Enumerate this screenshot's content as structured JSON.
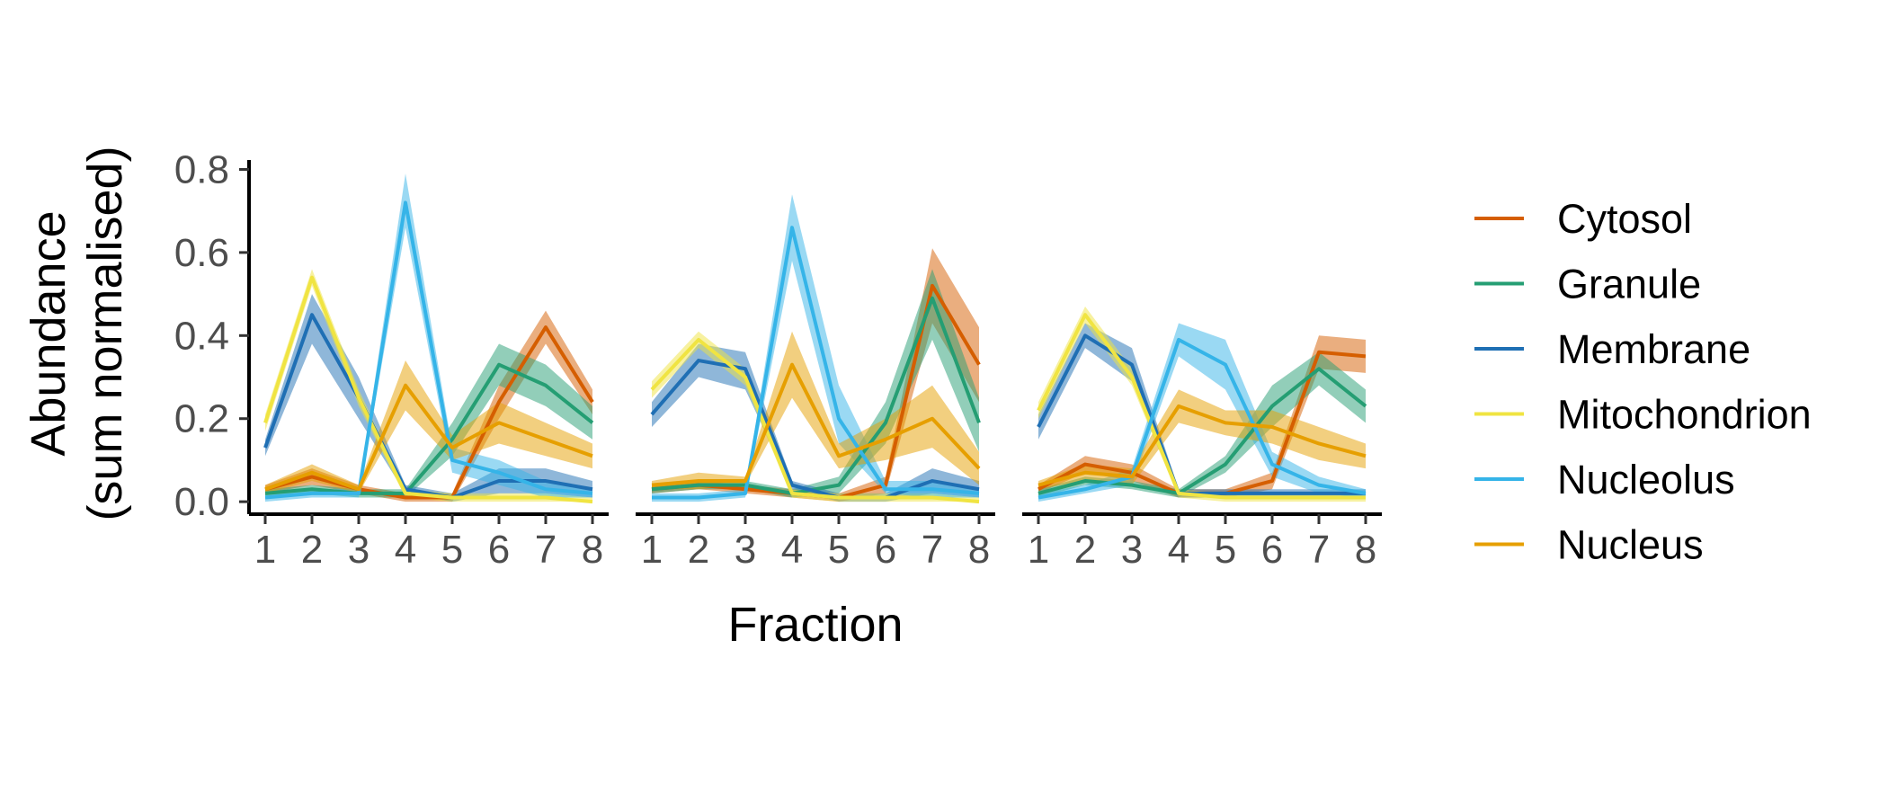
{
  "chart_data": {
    "type": "line",
    "facets": 3,
    "ylabel_lines": [
      "Abundance",
      "(sum normalised)"
    ],
    "xlabel": "Fraction",
    "x": [
      1,
      2,
      3,
      4,
      5,
      6,
      7,
      8
    ],
    "x_ticks": [
      "1",
      "2",
      "3",
      "4",
      "5",
      "6",
      "7",
      "8"
    ],
    "ylim": [
      -0.03,
      0.84
    ],
    "y_ticks": [
      0.0,
      0.2,
      0.4,
      0.6,
      0.8
    ],
    "y_tick_labels": [
      "0.0",
      "0.2",
      "0.4",
      "0.6",
      "0.8"
    ],
    "legend_position": "right",
    "band_opacity": 0.5,
    "panels": [
      {
        "series": [
          {
            "name": "Cytosol",
            "color": "#D55E00",
            "values": [
              0.03,
              0.06,
              0.03,
              0.01,
              0.01,
              0.24,
              0.42,
              0.24
            ],
            "lower": [
              0.02,
              0.04,
              0.02,
              0.0,
              0.0,
              0.2,
              0.38,
              0.21
            ],
            "upper": [
              0.04,
              0.08,
              0.04,
              0.02,
              0.02,
              0.28,
              0.46,
              0.27
            ]
          },
          {
            "name": "Granule",
            "color": "#259E73",
            "values": [
              0.02,
              0.03,
              0.02,
              0.02,
              0.15,
              0.33,
              0.28,
              0.19
            ],
            "lower": [
              0.01,
              0.02,
              0.01,
              0.01,
              0.11,
              0.28,
              0.23,
              0.15
            ],
            "upper": [
              0.03,
              0.04,
              0.03,
              0.03,
              0.19,
              0.38,
              0.33,
              0.23
            ]
          },
          {
            "name": "Membrane",
            "color": "#1F6FB4",
            "values": [
              0.13,
              0.45,
              0.25,
              0.03,
              0.01,
              0.05,
              0.05,
              0.03
            ],
            "lower": [
              0.11,
              0.38,
              0.2,
              0.02,
              0.0,
              0.02,
              0.02,
              0.01
            ],
            "upper": [
              0.15,
              0.5,
              0.3,
              0.04,
              0.02,
              0.08,
              0.08,
              0.05
            ]
          },
          {
            "name": "Mitochondrion",
            "color": "#F0E442",
            "values": [
              0.19,
              0.54,
              0.25,
              0.02,
              0.01,
              0.01,
              0.01,
              0.0
            ],
            "lower": [
              0.17,
              0.52,
              0.23,
              0.01,
              0.0,
              0.0,
              0.0,
              0.0
            ],
            "upper": [
              0.21,
              0.56,
              0.27,
              0.03,
              0.02,
              0.02,
              0.02,
              0.01
            ]
          },
          {
            "name": "Nucleolus",
            "color": "#35B4E8",
            "values": [
              0.01,
              0.02,
              0.02,
              0.72,
              0.1,
              0.07,
              0.03,
              0.02
            ],
            "lower": [
              0.0,
              0.01,
              0.01,
              0.66,
              0.07,
              0.04,
              0.01,
              0.01
            ],
            "upper": [
              0.02,
              0.03,
              0.03,
              0.79,
              0.13,
              0.1,
              0.05,
              0.03
            ]
          },
          {
            "name": "Nucleus",
            "color": "#E69F00",
            "values": [
              0.03,
              0.07,
              0.03,
              0.28,
              0.13,
              0.19,
              0.15,
              0.11
            ],
            "lower": [
              0.02,
              0.05,
              0.02,
              0.22,
              0.1,
              0.14,
              0.11,
              0.08
            ],
            "upper": [
              0.04,
              0.09,
              0.04,
              0.34,
              0.16,
              0.24,
              0.19,
              0.14
            ]
          }
        ]
      },
      {
        "series": [
          {
            "name": "Cytosol",
            "color": "#D55E00",
            "values": [
              0.03,
              0.04,
              0.03,
              0.02,
              0.01,
              0.04,
              0.52,
              0.33
            ],
            "lower": [
              0.02,
              0.03,
              0.02,
              0.01,
              0.0,
              0.02,
              0.43,
              0.24
            ],
            "upper": [
              0.04,
              0.05,
              0.04,
              0.03,
              0.02,
              0.06,
              0.61,
              0.42
            ]
          },
          {
            "name": "Granule",
            "color": "#259E73",
            "values": [
              0.03,
              0.04,
              0.04,
              0.02,
              0.04,
              0.19,
              0.49,
              0.19
            ],
            "lower": [
              0.02,
              0.03,
              0.03,
              0.01,
              0.02,
              0.14,
              0.39,
              0.12
            ],
            "upper": [
              0.04,
              0.05,
              0.05,
              0.03,
              0.06,
              0.24,
              0.56,
              0.25
            ]
          },
          {
            "name": "Membrane",
            "color": "#1F6FB4",
            "values": [
              0.21,
              0.34,
              0.32,
              0.04,
              0.01,
              0.01,
              0.05,
              0.03
            ],
            "lower": [
              0.18,
              0.3,
              0.27,
              0.03,
              0.0,
              0.0,
              0.02,
              0.01
            ],
            "upper": [
              0.24,
              0.38,
              0.36,
              0.05,
              0.02,
              0.02,
              0.08,
              0.05
            ]
          },
          {
            "name": "Mitochondrion",
            "color": "#F0E442",
            "values": [
              0.27,
              0.39,
              0.3,
              0.02,
              0.01,
              0.01,
              0.01,
              0.0
            ],
            "lower": [
              0.25,
              0.37,
              0.28,
              0.01,
              0.0,
              0.0,
              0.0,
              0.0
            ],
            "upper": [
              0.29,
              0.41,
              0.32,
              0.03,
              0.02,
              0.02,
              0.02,
              0.01
            ]
          },
          {
            "name": "Nucleolus",
            "color": "#35B4E8",
            "values": [
              0.01,
              0.01,
              0.02,
              0.66,
              0.2,
              0.03,
              0.03,
              0.02
            ],
            "lower": [
              0.0,
              0.0,
              0.01,
              0.58,
              0.14,
              0.02,
              0.01,
              0.01
            ],
            "upper": [
              0.02,
              0.02,
              0.03,
              0.74,
              0.28,
              0.05,
              0.05,
              0.03
            ]
          },
          {
            "name": "Nucleus",
            "color": "#E69F00",
            "values": [
              0.04,
              0.05,
              0.05,
              0.33,
              0.11,
              0.15,
              0.2,
              0.08
            ],
            "lower": [
              0.03,
              0.03,
              0.04,
              0.25,
              0.08,
              0.1,
              0.13,
              0.04
            ],
            "upper": [
              0.05,
              0.07,
              0.06,
              0.41,
              0.14,
              0.2,
              0.28,
              0.12
            ]
          }
        ]
      },
      {
        "series": [
          {
            "name": "Cytosol",
            "color": "#D55E00",
            "values": [
              0.03,
              0.09,
              0.07,
              0.02,
              0.02,
              0.05,
              0.36,
              0.35
            ],
            "lower": [
              0.02,
              0.07,
              0.05,
              0.01,
              0.01,
              0.03,
              0.32,
              0.31
            ],
            "upper": [
              0.04,
              0.11,
              0.09,
              0.03,
              0.03,
              0.07,
              0.4,
              0.39
            ]
          },
          {
            "name": "Granule",
            "color": "#259E73",
            "values": [
              0.02,
              0.05,
              0.04,
              0.02,
              0.09,
              0.23,
              0.32,
              0.23
            ],
            "lower": [
              0.01,
              0.04,
              0.03,
              0.01,
              0.07,
              0.18,
              0.28,
              0.19
            ],
            "upper": [
              0.03,
              0.06,
              0.05,
              0.03,
              0.11,
              0.28,
              0.36,
              0.27
            ]
          },
          {
            "name": "Membrane",
            "color": "#1F6FB4",
            "values": [
              0.18,
              0.4,
              0.33,
              0.02,
              0.02,
              0.02,
              0.02,
              0.02
            ],
            "lower": [
              0.15,
              0.37,
              0.29,
              0.01,
              0.01,
              0.01,
              0.01,
              0.01
            ],
            "upper": [
              0.21,
              0.43,
              0.37,
              0.03,
              0.03,
              0.03,
              0.03,
              0.03
            ]
          },
          {
            "name": "Mitochondrion",
            "color": "#F0E442",
            "values": [
              0.22,
              0.45,
              0.3,
              0.02,
              0.01,
              0.01,
              0.01,
              0.01
            ],
            "lower": [
              0.2,
              0.43,
              0.28,
              0.01,
              0.0,
              0.0,
              0.0,
              0.0
            ],
            "upper": [
              0.24,
              0.47,
              0.32,
              0.03,
              0.02,
              0.02,
              0.02,
              0.02
            ]
          },
          {
            "name": "Nucleolus",
            "color": "#35B4E8",
            "values": [
              0.01,
              0.03,
              0.06,
              0.39,
              0.33,
              0.09,
              0.04,
              0.02
            ],
            "lower": [
              0.0,
              0.02,
              0.04,
              0.35,
              0.27,
              0.06,
              0.02,
              0.01
            ],
            "upper": [
              0.02,
              0.04,
              0.08,
              0.43,
              0.39,
              0.12,
              0.06,
              0.03
            ]
          },
          {
            "name": "Nucleus",
            "color": "#E69F00",
            "values": [
              0.04,
              0.07,
              0.06,
              0.23,
              0.19,
              0.18,
              0.14,
              0.11
            ],
            "lower": [
              0.03,
              0.05,
              0.04,
              0.19,
              0.16,
              0.14,
              0.1,
              0.08
            ],
            "upper": [
              0.05,
              0.09,
              0.08,
              0.27,
              0.22,
              0.22,
              0.18,
              0.14
            ]
          }
        ]
      }
    ],
    "legend": [
      {
        "label": "Cytosol",
        "color": "#D55E00"
      },
      {
        "label": "Granule",
        "color": "#259E73"
      },
      {
        "label": "Membrane",
        "color": "#1F6FB4"
      },
      {
        "label": "Mitochondrion",
        "color": "#F0E442"
      },
      {
        "label": "Nucleolus",
        "color": "#35B4E8"
      },
      {
        "label": "Nucleus",
        "color": "#E69F00"
      }
    ]
  }
}
